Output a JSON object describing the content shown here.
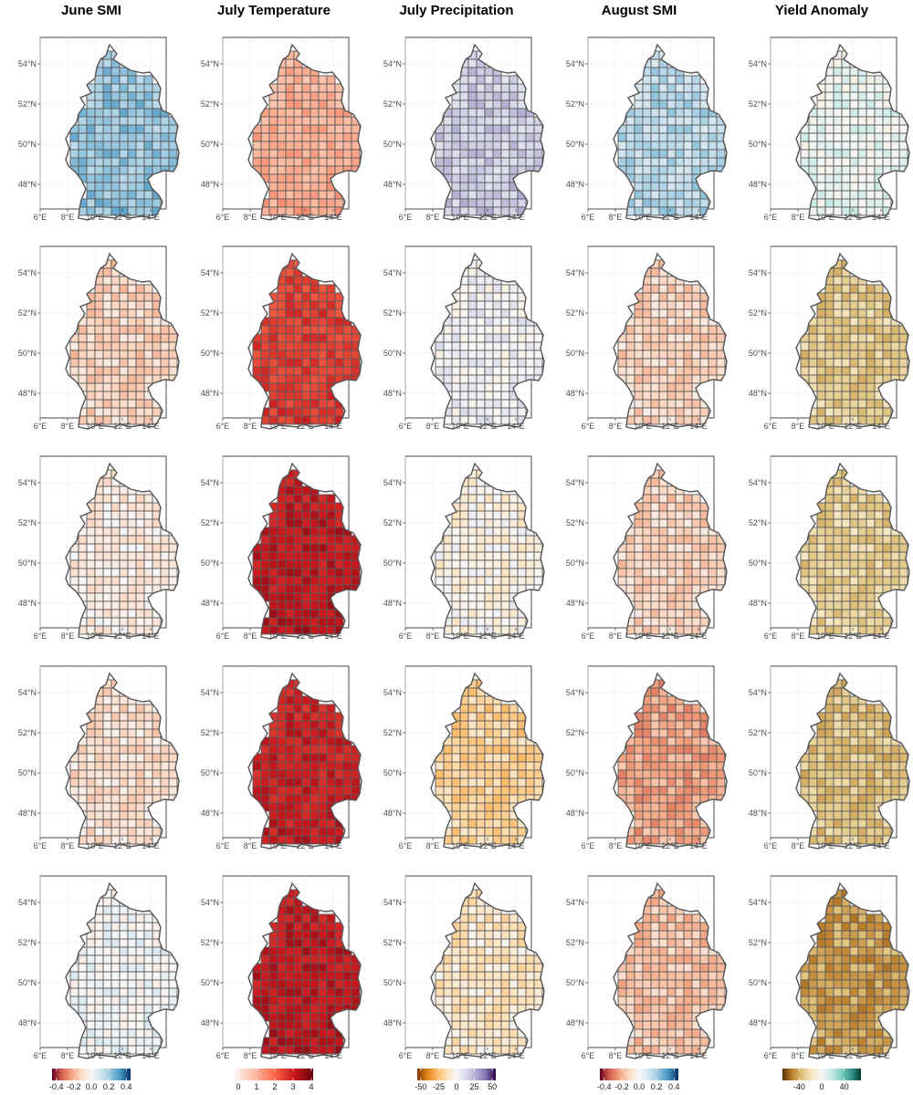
{
  "chart_data": {
    "type": "heatmap",
    "subtype": "choropleth-map-grid",
    "region": "Germany (districts)",
    "columns": [
      "June SMI",
      "July Temperature",
      "July Precipitation",
      "August SMI",
      "Yield Anomaly"
    ],
    "rows": 5,
    "axes": {
      "x_ticks": [
        "6°E",
        "8°E",
        "10°E",
        "12°E",
        "14°E"
      ],
      "y_ticks": [
        "54°N",
        "52°N",
        "50°N",
        "48°N"
      ],
      "grid": true
    },
    "colorbars": [
      {
        "column": "June SMI",
        "palette": "RdBu",
        "colors": [
          "#67001f",
          "#d6604d",
          "#f4a582",
          "#fddbc7",
          "#f7f7f7",
          "#d1e5f0",
          "#92c5de",
          "#4393c3",
          "#053061"
        ],
        "ticks": [
          "-0.4",
          "-0.2",
          "0.0",
          "0.2",
          "0.4"
        ],
        "range": [
          -0.45,
          0.45
        ]
      },
      {
        "column": "July Temperature",
        "palette": "Reds",
        "colors": [
          "#fff5f0",
          "#fcbba1",
          "#fb6a4a",
          "#cb181d",
          "#67000d"
        ],
        "ticks": [
          "0",
          "1",
          "2",
          "3",
          "4"
        ],
        "range": [
          -0.2,
          4.1
        ]
      },
      {
        "column": "July Precipitation",
        "palette": "PuOr",
        "colors": [
          "#7f3b08",
          "#e08214",
          "#fdb863",
          "#fee0b6",
          "#f7f7f7",
          "#d8daeb",
          "#b2abd2",
          "#8073ac",
          "#2d004b"
        ],
        "ticks": [
          "-50",
          "-25",
          "0",
          "25",
          "50"
        ],
        "range": [
          -55,
          55
        ]
      },
      {
        "column": "August SMI",
        "palette": "RdBu",
        "colors": [
          "#67001f",
          "#d6604d",
          "#f4a582",
          "#fddbc7",
          "#f7f7f7",
          "#d1e5f0",
          "#92c5de",
          "#4393c3",
          "#053061"
        ],
        "ticks": [
          "-0.4",
          "-0.2",
          "0.0",
          "0.2",
          "0.4"
        ],
        "range": [
          -0.45,
          0.45
        ]
      },
      {
        "column": "Yield Anomaly",
        "palette": "BrBG",
        "colors": [
          "#543005",
          "#bf812d",
          "#dfc27d",
          "#f6e8c3",
          "#f5f5f5",
          "#c7eae5",
          "#80cdc1",
          "#35978f",
          "#003c30"
        ],
        "ticks": [
          "-40",
          "0",
          "40"
        ],
        "range": [
          -70,
          70
        ]
      }
    ],
    "panel_values": [
      [
        0.22,
        1.05,
        18,
        0.16,
        5
      ],
      [
        -0.12,
        2.55,
        4,
        -0.12,
        -30
      ],
      [
        -0.05,
        3.15,
        -3,
        -0.12,
        -28
      ],
      [
        -0.09,
        3.0,
        -18,
        -0.22,
        -33
      ],
      [
        0.02,
        3.15,
        -10,
        -0.16,
        -44
      ]
    ]
  }
}
